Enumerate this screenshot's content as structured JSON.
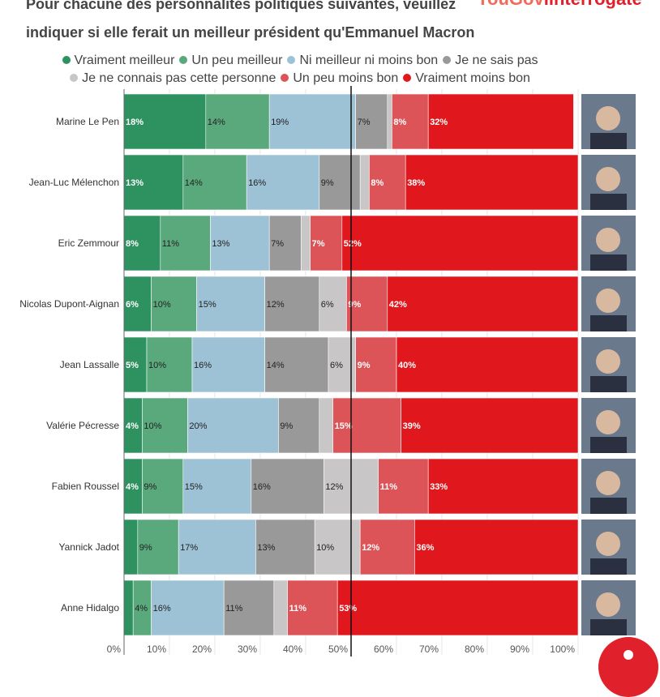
{
  "title": "Pour chacune des personnalités politiques suivantes, veuillez indiquer si elle ferait un meilleur président qu'Emmanuel Macron",
  "logo": {
    "part1": "YouGov",
    "part2": "linterrogate"
  },
  "chart_data": {
    "type": "bar",
    "orientation": "horizontal",
    "stacked": true,
    "xlim": [
      0,
      100
    ],
    "xticks": [
      "0%",
      "10%",
      "20%",
      "30%",
      "40%",
      "50%",
      "60%",
      "70%",
      "80%",
      "90%",
      "100%"
    ],
    "reference_line": 50,
    "legend_position": "top",
    "categories": [
      "Marine Le Pen",
      "Jean-Luc Mélenchon",
      "Eric Zemmour",
      "Nicolas Dupont-Aignan",
      "Jean Lassalle",
      "Valérie Pécresse",
      "Fabien Roussel",
      "Yannick Jadot",
      "Anne Hidalgo"
    ],
    "series": [
      {
        "name": "Vraiment meilleur",
        "color": "#2e9160",
        "label_color": "#fff",
        "values": [
          18,
          13,
          8,
          6,
          5,
          4,
          4,
          3,
          2
        ],
        "labels": [
          "18%",
          "13%",
          "8%",
          "6%",
          "5%",
          "4%",
          "4%",
          "",
          ""
        ]
      },
      {
        "name": "Un peu meilleur",
        "color": "#5aa97c",
        "label_color": "#222",
        "values": [
          14,
          14,
          11,
          10,
          10,
          10,
          9,
          9,
          4
        ],
        "labels": [
          "14%",
          "14%",
          "11%",
          "10%",
          "10%",
          "10%",
          "9%",
          "9%",
          "4%"
        ]
      },
      {
        "name": "Ni meilleur ni moins bon",
        "color": "#9dc2d6",
        "label_color": "#222",
        "values": [
          19,
          16,
          13,
          15,
          16,
          20,
          15,
          17,
          16
        ],
        "labels": [
          "19%",
          "16%",
          "13%",
          "15%",
          "16%",
          "20%",
          "15%",
          "17%",
          "16%"
        ]
      },
      {
        "name": "Je ne sais pas",
        "color": "#999999",
        "label_color": "#222",
        "values": [
          7,
          9,
          7,
          12,
          14,
          9,
          16,
          13,
          11
        ],
        "labels": [
          "7%",
          "9%",
          "7%",
          "12%",
          "14%",
          "9%",
          "16%",
          "13%",
          "11%"
        ]
      },
      {
        "name": "Je ne connais pas cette personne",
        "color": "#c8c6c7",
        "label_color": "#222",
        "values": [
          1,
          2,
          2,
          6,
          6,
          3,
          12,
          10,
          3
        ],
        "labels": [
          "",
          "",
          "",
          "6%",
          "6%",
          "",
          "12%",
          "10%",
          ""
        ]
      },
      {
        "name": "Un peu moins bon",
        "color": "#dc5457",
        "label_color": "#fff",
        "values": [
          8,
          8,
          7,
          9,
          9,
          15,
          11,
          12,
          11
        ],
        "labels": [
          "8%",
          "8%",
          "7%",
          "9%",
          "9%",
          "15%",
          "11%",
          "12%",
          "11%"
        ]
      },
      {
        "name": "Vraiment moins bon",
        "color": "#e0181e",
        "label_color": "#fff",
        "values": [
          32,
          38,
          52,
          42,
          40,
          39,
          33,
          36,
          53
        ],
        "labels": [
          "32%",
          "38%",
          "52%",
          "42%",
          "40%",
          "39%",
          "33%",
          "36%",
          "53%"
        ]
      }
    ]
  }
}
